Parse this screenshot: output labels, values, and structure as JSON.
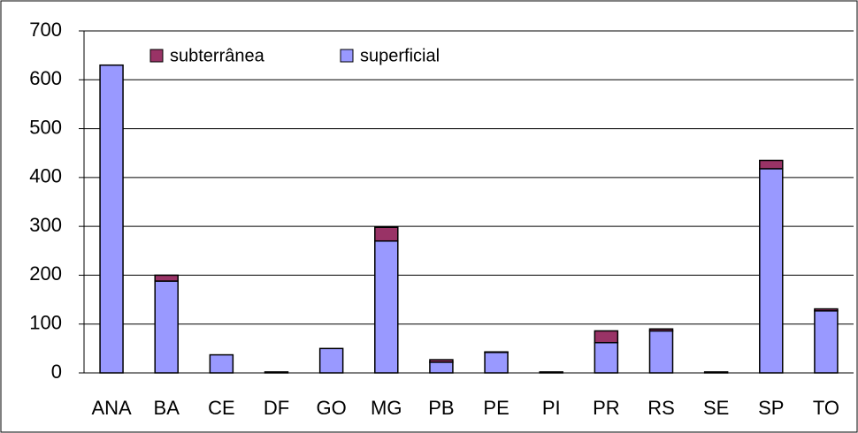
{
  "chart_data": {
    "type": "bar",
    "stacked": true,
    "categories": [
      "ANA",
      "BA",
      "CE",
      "DF",
      "GO",
      "MG",
      "PB",
      "PE",
      "PI",
      "PR",
      "RS",
      "SE",
      "SP",
      "TO"
    ],
    "series": [
      {
        "name": "subterrânea",
        "color": "#993366",
        "values": [
          0,
          12,
          0,
          0,
          0,
          28,
          5,
          1,
          0,
          24,
          4,
          0,
          17,
          4
        ]
      },
      {
        "name": "superficial",
        "color": "#9999ff",
        "values": [
          630,
          188,
          37,
          2,
          50,
          270,
          22,
          42,
          2,
          62,
          86,
          2,
          418,
          127
        ]
      }
    ],
    "ylim": [
      0,
      700
    ],
    "yticks": [
      0,
      100,
      200,
      300,
      400,
      500,
      600,
      700
    ],
    "grid": true,
    "legend": "top-left"
  }
}
